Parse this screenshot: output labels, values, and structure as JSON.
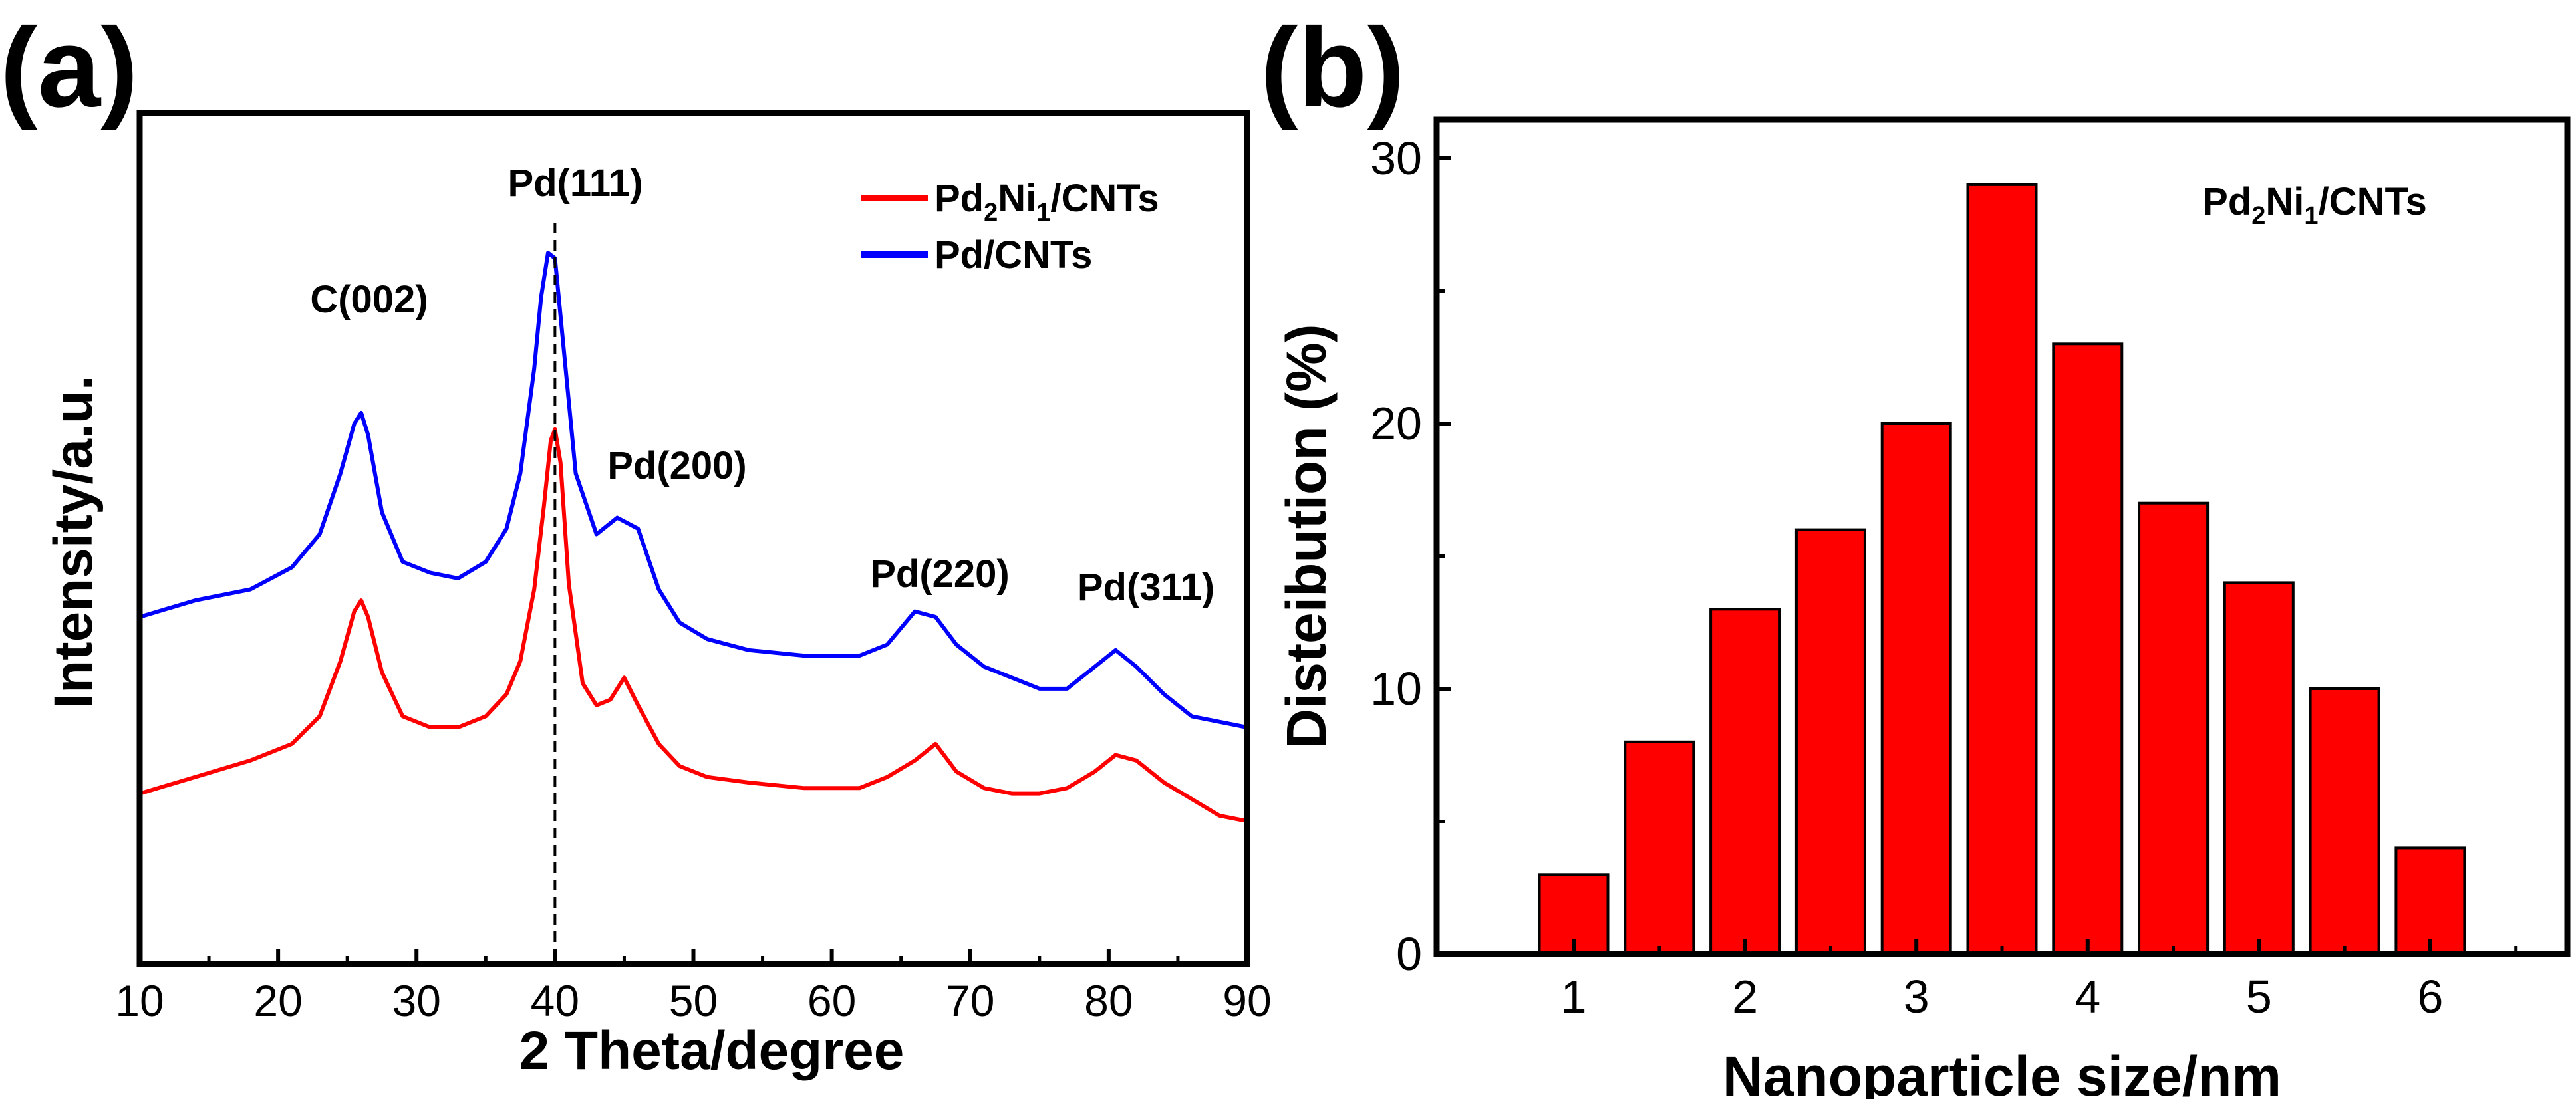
{
  "panel_a": {
    "panel_label": "(a)",
    "peak_labels": [
      "C(002)",
      "Pd(111)",
      "Pd(200)",
      "Pd(220)",
      "Pd(311)"
    ]
  },
  "panel_b": {
    "panel_label": "(b)"
  },
  "colors": {
    "pd2ni1": "#ff0000",
    "pd": "#0000ff",
    "bar_fill": "#ff0000",
    "bar_edge": "#000000",
    "axis": "#000000"
  },
  "chart_data": [
    {
      "type": "line",
      "title": "",
      "xlabel": "2 Theta/degree",
      "ylabel": "Intensity/a.u.",
      "xlim": [
        10,
        90
      ],
      "xticks": [
        10,
        20,
        30,
        40,
        50,
        60,
        70,
        80,
        90
      ],
      "yticks": [],
      "legend": {
        "position": "top-right",
        "entries": [
          {
            "base": "Pd",
            "sub1": "2",
            "mid": "Ni",
            "sub2": "1",
            "tail": "/CNTs"
          },
          {
            "text": "Pd/CNTs"
          }
        ]
      },
      "reference_line_x": 40,
      "series": [
        {
          "name": "Pd2Ni1/CNTs",
          "x": [
            10,
            14,
            18,
            21,
            23,
            24.5,
            25.5,
            26,
            26.5,
            27.5,
            29,
            31,
            33,
            35,
            36.5,
            37.5,
            38.5,
            39.2,
            39.7,
            40,
            40.4,
            41,
            42,
            43,
            44,
            45,
            46,
            47.5,
            49,
            51,
            54,
            58,
            62,
            64,
            66,
            67.5,
            69,
            71,
            73,
            75,
            77,
            79,
            80.5,
            82,
            84,
            86,
            88,
            90
          ],
          "y": [
            0.08,
            0.11,
            0.14,
            0.17,
            0.22,
            0.32,
            0.41,
            0.43,
            0.4,
            0.3,
            0.22,
            0.2,
            0.2,
            0.22,
            0.26,
            0.32,
            0.45,
            0.6,
            0.72,
            0.74,
            0.68,
            0.46,
            0.28,
            0.24,
            0.25,
            0.29,
            0.24,
            0.17,
            0.13,
            0.11,
            0.1,
            0.09,
            0.09,
            0.11,
            0.14,
            0.17,
            0.12,
            0.09,
            0.08,
            0.08,
            0.09,
            0.12,
            0.15,
            0.14,
            0.1,
            0.07,
            0.04,
            0.03
          ]
        },
        {
          "name": "Pd/CNTs",
          "x": [
            10,
            14,
            18,
            21,
            23,
            24.5,
            25.5,
            26,
            26.5,
            27.5,
            29,
            31,
            33,
            35,
            36.5,
            37.5,
            38.5,
            39,
            39.5,
            40,
            40.5,
            41.5,
            43,
            44.5,
            46,
            47.5,
            49,
            51,
            54,
            58,
            62,
            64,
            66,
            67.5,
            69,
            71,
            73,
            75,
            77,
            79,
            80.5,
            82,
            84,
            86,
            88,
            90
          ],
          "y": [
            0.4,
            0.43,
            0.45,
            0.49,
            0.55,
            0.66,
            0.75,
            0.77,
            0.73,
            0.59,
            0.5,
            0.48,
            0.47,
            0.5,
            0.56,
            0.66,
            0.85,
            0.98,
            1.06,
            1.05,
            0.92,
            0.66,
            0.55,
            0.58,
            0.56,
            0.45,
            0.39,
            0.36,
            0.34,
            0.33,
            0.33,
            0.35,
            0.41,
            0.4,
            0.35,
            0.31,
            0.29,
            0.27,
            0.27,
            0.31,
            0.34,
            0.31,
            0.26,
            0.22,
            0.21,
            0.2
          ]
        }
      ]
    },
    {
      "type": "bar",
      "title": "",
      "xlabel": "Nanoparticle size/nm",
      "ylabel": "Disteibution (%)",
      "xlim": [
        0.2,
        6.8
      ],
      "ylim": [
        0,
        30
      ],
      "xticks": [
        1,
        2,
        3,
        4,
        5,
        6
      ],
      "yticks": [
        0,
        10,
        20,
        30
      ],
      "annotation": {
        "base": "Pd",
        "sub1": "2",
        "mid": "Ni",
        "sub2": "1",
        "tail": "/CNTs"
      },
      "bar_width": 0.4,
      "categories": [
        1,
        1.5,
        2,
        2.5,
        3,
        3.5,
        4,
        4.5,
        5,
        5.5,
        6
      ],
      "values": [
        3,
        8,
        13,
        16,
        20,
        29,
        23,
        17,
        14,
        10,
        4
      ]
    }
  ]
}
